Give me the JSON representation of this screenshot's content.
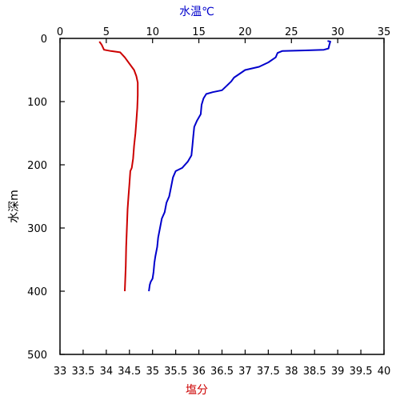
{
  "chart_data": {
    "type": "line",
    "y_axis": {
      "label": "水深m",
      "range": [
        0,
        500
      ],
      "ticks": [
        "0",
        "100",
        "200",
        "300",
        "400",
        "500"
      ],
      "tick_values": [
        0,
        100,
        200,
        300,
        400,
        500
      ],
      "inverted": true
    },
    "x_axis_top": {
      "label": "水温℃",
      "range": [
        0,
        35
      ],
      "ticks": [
        "0",
        "5",
        "10",
        "15",
        "20",
        "25",
        "30",
        "35"
      ],
      "tick_values": [
        0,
        5,
        10,
        15,
        20,
        25,
        30,
        35
      ]
    },
    "x_axis_bottom": {
      "label": "塩分",
      "range": [
        33,
        40
      ],
      "ticks": [
        "33",
        "33.5",
        "34",
        "34.5",
        "35",
        "35.5",
        "36",
        "36.5",
        "37",
        "37.5",
        "38",
        "38.5",
        "39",
        "39.5",
        "40"
      ],
      "tick_values": [
        33,
        33.5,
        34,
        34.5,
        35,
        35.5,
        36,
        36.5,
        37,
        37.5,
        38,
        38.5,
        39,
        39.5,
        40
      ]
    },
    "grid": false,
    "series": [
      {
        "color": "#0000cc",
        "x_axis": "top",
        "points": [
          [
            28.9,
            4
          ],
          [
            29.2,
            5
          ],
          [
            29.1,
            10
          ],
          [
            29.0,
            16
          ],
          [
            28.5,
            18
          ],
          [
            26.5,
            19
          ],
          [
            24.0,
            20
          ],
          [
            23.5,
            23
          ],
          [
            23.3,
            30
          ],
          [
            22.5,
            38
          ],
          [
            21.5,
            45
          ],
          [
            20.0,
            50
          ],
          [
            19.5,
            55
          ],
          [
            18.8,
            62
          ],
          [
            18.5,
            68
          ],
          [
            18.0,
            75
          ],
          [
            17.5,
            82
          ],
          [
            16.5,
            85
          ],
          [
            15.8,
            88
          ],
          [
            15.5,
            95
          ],
          [
            15.3,
            105
          ],
          [
            15.2,
            120
          ],
          [
            14.8,
            130
          ],
          [
            14.5,
            140
          ],
          [
            14.4,
            155
          ],
          [
            14.3,
            170
          ],
          [
            14.2,
            185
          ],
          [
            13.8,
            195
          ],
          [
            13.2,
            205
          ],
          [
            12.5,
            210
          ],
          [
            12.2,
            220
          ],
          [
            12.0,
            235
          ],
          [
            11.8,
            250
          ],
          [
            11.5,
            260
          ],
          [
            11.3,
            275
          ],
          [
            11.0,
            285
          ],
          [
            10.8,
            300
          ],
          [
            10.6,
            315
          ],
          [
            10.5,
            330
          ],
          [
            10.3,
            345
          ],
          [
            10.2,
            355
          ],
          [
            10.1,
            370
          ],
          [
            10.0,
            380
          ],
          [
            9.8,
            385
          ],
          [
            9.7,
            390
          ],
          [
            9.6,
            400
          ]
        ]
      },
      {
        "color": "#cc0000",
        "x_axis": "bottom",
        "points": [
          [
            33.85,
            5
          ],
          [
            33.9,
            10
          ],
          [
            33.95,
            18
          ],
          [
            34.1,
            20
          ],
          [
            34.3,
            22
          ],
          [
            34.4,
            30
          ],
          [
            34.5,
            40
          ],
          [
            34.6,
            50
          ],
          [
            34.65,
            60
          ],
          [
            34.68,
            70
          ],
          [
            34.68,
            90
          ],
          [
            34.67,
            110
          ],
          [
            34.65,
            130
          ],
          [
            34.63,
            150
          ],
          [
            34.6,
            170
          ],
          [
            34.58,
            190
          ],
          [
            34.55,
            205
          ],
          [
            34.52,
            210
          ],
          [
            34.5,
            230
          ],
          [
            34.48,
            250
          ],
          [
            34.46,
            270
          ],
          [
            34.45,
            290
          ],
          [
            34.44,
            310
          ],
          [
            34.43,
            330
          ],
          [
            34.42,
            360
          ],
          [
            34.41,
            380
          ],
          [
            34.4,
            400
          ]
        ]
      }
    ]
  }
}
